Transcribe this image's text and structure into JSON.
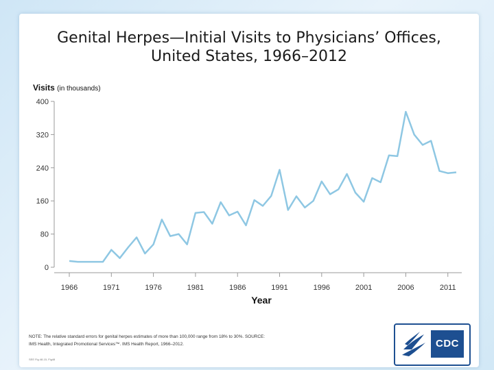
{
  "chart_data": {
    "type": "line",
    "title": "Genital Herpes—Initial Visits to Physicians’ Offices,",
    "title_line2": "United States, 1966–2012",
    "ylabel": "Visits",
    "ylabel_unit": "(in thousands)",
    "xlabel": "Year",
    "ylim": [
      0,
      400
    ],
    "yticks": [
      0,
      80,
      160,
      240,
      320,
      400
    ],
    "xticks": [
      1966,
      1971,
      1976,
      1981,
      1986,
      1991,
      1996,
      2001,
      2006,
      2011
    ],
    "xlim": [
      1966,
      2012
    ],
    "grid": false,
    "color": "#8ec7e3",
    "x": [
      1966,
      1967,
      1968,
      1969,
      1970,
      1971,
      1972,
      1973,
      1974,
      1975,
      1976,
      1977,
      1978,
      1979,
      1980,
      1981,
      1982,
      1983,
      1984,
      1985,
      1986,
      1987,
      1988,
      1989,
      1990,
      1991,
      1992,
      1993,
      1994,
      1995,
      1996,
      1997,
      1998,
      1999,
      2000,
      2001,
      2002,
      2003,
      2004,
      2005,
      2006,
      2007,
      2008,
      2009,
      2010,
      2011,
      2012
    ],
    "values": [
      15,
      13,
      13,
      13,
      13,
      42,
      22,
      48,
      72,
      33,
      55,
      115,
      75,
      80,
      55,
      131,
      133,
      105,
      157,
      125,
      134,
      101,
      162,
      148,
      172,
      235,
      138,
      171,
      144,
      160,
      207,
      176,
      188,
      225,
      180,
      158,
      215,
      205,
      270,
      268,
      375,
      320,
      295,
      305,
      232,
      227,
      229
    ]
  },
  "note_line1": "NOTE: The relative standard errors for genital herpes estimates of more than 100,000 range from 18% to 30%. SOURCE:",
  "note_line2": "IMS Health, Integrated Promotional Services™. IMS Health Report, 1966–2012.",
  "footer_small": "SEE Fig 48-15, Fig48",
  "logo_text": "CDC",
  "colors": {
    "brand": "#1d4f91",
    "line": "#8ec7e3"
  }
}
